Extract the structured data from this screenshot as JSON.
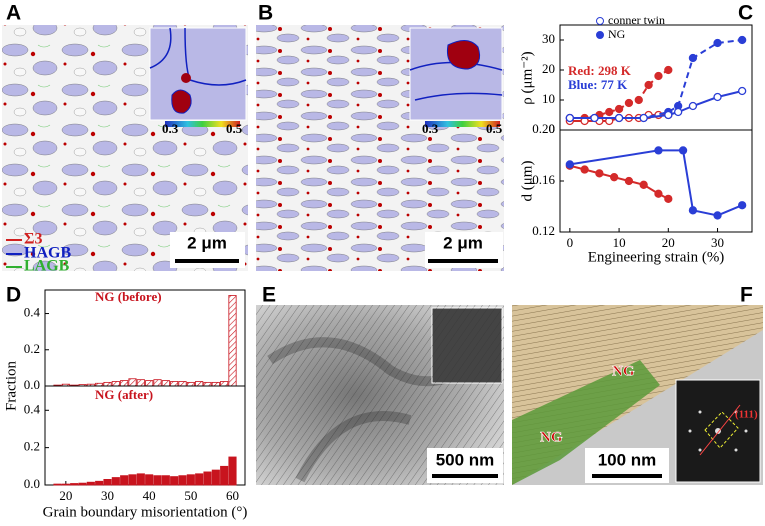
{
  "panels": {
    "letters": [
      "A",
      "B",
      "C",
      "D",
      "E",
      "F"
    ],
    "a": {
      "colorbar": [
        "0.3",
        "0.5"
      ],
      "legend": [
        "Σ3",
        "HAGB",
        "LAGB"
      ],
      "scale": "2 μm"
    },
    "b": {
      "colorbar": [
        "0.3",
        "0.5"
      ],
      "scale": "2 μm"
    },
    "e": {
      "scale": "500 nm"
    },
    "f": {
      "labels": [
        "NG",
        "NG"
      ],
      "scale": "100 nm",
      "plane": "(111)"
    }
  },
  "chart_data": [
    {
      "type": "scatter",
      "ylabel": "ρ (μm⁻²)",
      "xlim": [
        -2,
        37
      ],
      "ylim": [
        0,
        35
      ],
      "yticks": [
        0,
        10,
        20,
        30
      ],
      "legend": [
        {
          "label": "conner twin",
          "marker": "open"
        },
        {
          "label": "NG",
          "marker": "filled"
        }
      ],
      "legend_color": "#2a3ed6",
      "annotations": [
        {
          "text": "Red: 298 K",
          "color": "#d42a2a"
        },
        {
          "text": "Blue:  77 K",
          "color": "#2a3ed6"
        }
      ],
      "series": [
        {
          "color": "#d42a2a",
          "marker": "filled",
          "line": "dashed",
          "x": [
            0,
            3,
            6,
            8,
            10,
            12,
            14,
            16,
            18,
            20
          ],
          "values": [
            4,
            4,
            5,
            6,
            7,
            9,
            10,
            15,
            18,
            20
          ]
        },
        {
          "color": "#d42a2a",
          "marker": "open",
          "line": "solid",
          "x": [
            0,
            3,
            6,
            8,
            10,
            12,
            14,
            16,
            18,
            20
          ],
          "values": [
            3,
            3,
            3,
            3,
            4,
            4,
            4,
            5,
            5,
            5
          ]
        },
        {
          "color": "#2a3ed6",
          "marker": "filled",
          "line": "dashed",
          "x": [
            0,
            5,
            10,
            15,
            20,
            22,
            25,
            30,
            35
          ],
          "values": [
            4,
            4,
            4,
            4,
            6,
            8,
            24,
            29,
            30
          ]
        },
        {
          "color": "#2a3ed6",
          "marker": "open",
          "line": "solid",
          "x": [
            0,
            5,
            10,
            15,
            20,
            22,
            25,
            30,
            35
          ],
          "values": [
            4,
            4,
            4,
            4,
            5,
            6,
            8,
            11,
            13
          ]
        }
      ]
    },
    {
      "type": "scatter",
      "ylabel": "d (μm)",
      "xlabel": "Engineering strain (%)",
      "xlim": [
        -2,
        37
      ],
      "xticks": [
        0,
        10,
        20,
        30
      ],
      "ylim": [
        0.12,
        0.2
      ],
      "yticks": [
        0.12,
        0.16,
        {
          "value": 0.2,
          "label": "0.20"
        }
      ],
      "series": [
        {
          "color": "#d42a2a",
          "marker": "filled",
          "line": "solid",
          "x": [
            0,
            3,
            6,
            9,
            12,
            15,
            18,
            20
          ],
          "values": [
            0.172,
            0.169,
            0.166,
            0.163,
            0.16,
            0.157,
            0.15,
            0.146
          ]
        },
        {
          "color": "#2a3ed6",
          "marker": "filled",
          "line": "solid",
          "x": [
            0,
            18,
            23,
            25,
            30,
            35
          ],
          "values": [
            0.173,
            0.184,
            0.184,
            0.137,
            0.133,
            0.141
          ]
        }
      ]
    },
    {
      "type": "histogram",
      "color": "#c8141e",
      "hatch": true,
      "annotations": [
        {
          "text": "NG (before)",
          "color": "#c8141e"
        }
      ],
      "xlim": [
        15,
        63
      ],
      "ylim": [
        0,
        0.53
      ],
      "yticks": [
        {
          "value": 0,
          "label": "0.0"
        },
        0.2,
        0.4
      ],
      "bins": [
        17,
        19,
        21,
        23,
        25,
        27,
        29,
        31,
        33,
        35,
        37,
        39,
        41,
        43,
        45,
        47,
        49,
        51,
        53,
        55,
        57,
        59,
        61
      ],
      "values": [
        0.005,
        0.01,
        0.005,
        0.008,
        0.01,
        0.015,
        0.02,
        0.025,
        0.03,
        0.04,
        0.035,
        0.03,
        0.035,
        0.03,
        0.025,
        0.025,
        0.02,
        0.025,
        0.02,
        0.02,
        0.025,
        0.5
      ]
    },
    {
      "type": "histogram",
      "color": "#c8141e",
      "hatch": false,
      "ylabel": "Fraction",
      "xlabel": "Grain boundary misorientation (°)",
      "annotations": [
        {
          "text": "NG (after)",
          "color": "#c8141e"
        }
      ],
      "xlim": [
        15,
        63
      ],
      "xticks": [
        20,
        30,
        40,
        50,
        60
      ],
      "ylim": [
        0,
        0.53
      ],
      "yticks": [
        {
          "value": 0,
          "label": "0.0"
        },
        0.2,
        0.4
      ],
      "bins": [
        17,
        19,
        21,
        23,
        25,
        27,
        29,
        31,
        33,
        35,
        37,
        39,
        41,
        43,
        45,
        47,
        49,
        51,
        53,
        55,
        57,
        59,
        61
      ],
      "values": [
        0.005,
        0.005,
        0.008,
        0.01,
        0.015,
        0.02,
        0.03,
        0.04,
        0.05,
        0.055,
        0.06,
        0.055,
        0.05,
        0.05,
        0.045,
        0.05,
        0.055,
        0.06,
        0.07,
        0.08,
        0.1,
        0.15
      ]
    }
  ]
}
